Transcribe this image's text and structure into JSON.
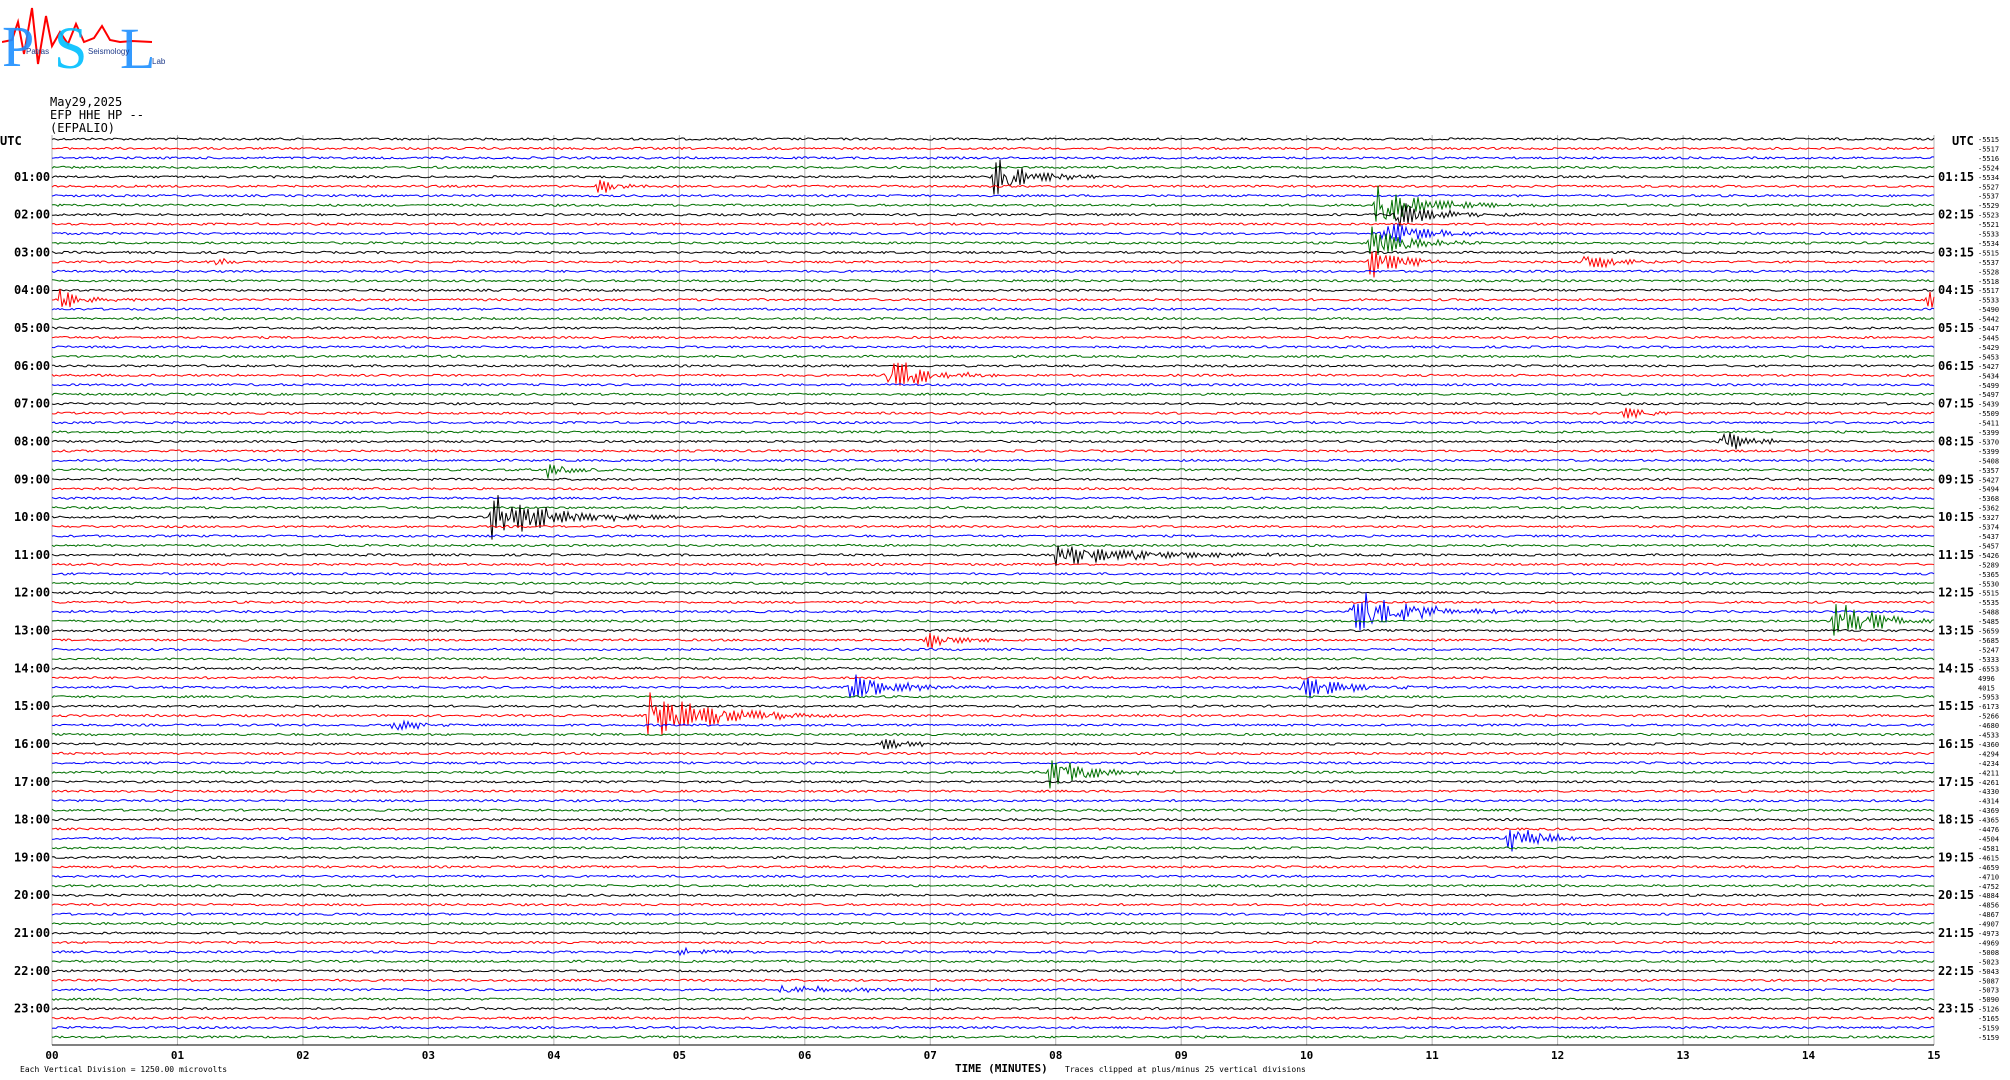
{
  "header": {
    "date": "May29,2025",
    "channel": "EFP HHE HP --",
    "station": "(EFPALIO)"
  },
  "logo": {
    "letters": [
      "P",
      "S",
      "L"
    ],
    "small_words": [
      "Patras",
      "Seismology",
      "Lab"
    ]
  },
  "footer": {
    "left_note": "Each Vertical Division = 1250.00 microvolts",
    "x_axis_title": "TIME (MINUTES)",
    "clip_note": "Traces clipped at plus/minus 25 vertical divisions"
  },
  "colors": {
    "trace_cycle": [
      "#000000",
      "#ff0000",
      "#0000ff",
      "#007000"
    ],
    "logo_p": "#1e90ff",
    "logo_s": "#00bfff",
    "logo_l": "#1e90ff",
    "logo_wave": "#ff0000"
  },
  "chart_data": {
    "type": "line",
    "title": "",
    "xlabel": "TIME (MINUTES)",
    "x_ticks": [
      "00",
      "01",
      "02",
      "03",
      "04",
      "05",
      "06",
      "07",
      "08",
      "09",
      "10",
      "11",
      "12",
      "13",
      "14",
      "15"
    ],
    "xlim": [
      0,
      15
    ],
    "grid": true,
    "rows": 96,
    "row_minutes": 15,
    "left_label_header": "UTC",
    "right_label_header": "UTC",
    "left_hour_labels": [
      "01:00",
      "02:00",
      "03:00",
      "04:00",
      "05:00",
      "06:00",
      "07:00",
      "08:00",
      "09:00",
      "10:00",
      "11:00",
      "12:00",
      "13:00",
      "14:00",
      "15:00",
      "16:00",
      "17:00",
      "18:00",
      "19:00",
      "20:00",
      "21:00",
      "22:00",
      "23:00"
    ],
    "right_hour_labels": [
      "01:15",
      "02:15",
      "03:15",
      "04:15",
      "05:15",
      "06:15",
      "07:15",
      "08:15",
      "09:15",
      "10:15",
      "11:15",
      "12:15",
      "13:15",
      "14:15",
      "15:15",
      "16:15",
      "17:15",
      "18:15",
      "19:15",
      "20:15",
      "21:15",
      "22:15",
      "23:15"
    ],
    "row_offsets": [
      "-5515",
      "-5517",
      "-5516",
      "-5524",
      "-5534",
      "-5527",
      "-5537",
      "-5529",
      "-5523",
      "-5521",
      "-5533",
      "-5534",
      "-5515",
      "-5537",
      "-5528",
      "-5518",
      "-5517",
      "-5533",
      "-5490",
      "-5442",
      "-5447",
      "-5445",
      "-5429",
      "-5453",
      "-5427",
      "-5434",
      "-5499",
      "-5497",
      "-5439",
      "-5509",
      "-5411",
      "-5399",
      "-5370",
      "-5399",
      "-5408",
      "-5357",
      "-5427",
      "-5494",
      "-5368",
      "-5362",
      "-5327",
      "-5374",
      "-5437",
      "-5457",
      "-5426",
      "-5289",
      "-5365",
      "-5530",
      "-5515",
      "-5535",
      "-5488",
      "-5485",
      "-5659",
      "-5685",
      "-5247",
      "-5333",
      "-6553",
      "4996",
      "4015",
      "-5953",
      "-6173",
      "-5266",
      "-4680",
      "-4533",
      "-4360",
      "-4294",
      "-4234",
      "-4211",
      "-4261",
      "-4330",
      "-4314",
      "-4369",
      "-4365",
      "-4476",
      "-4504",
      "-4581",
      "-4615",
      "-4659",
      "-4710",
      "-4752",
      "-4884",
      "-4856",
      "-4867",
      "-4907",
      "-4973",
      "-4969",
      "-5008",
      "-5023",
      "-5043",
      "-5087",
      "-5073",
      "-5090",
      "-5126",
      "-5165",
      "-5159",
      "-5159"
    ],
    "events": [
      {
        "row": 4,
        "minute": 7.5,
        "amp": 26,
        "dur": 0.25,
        "freq": 3.0
      },
      {
        "row": 5,
        "minute": 4.35,
        "amp": 9,
        "dur": 0.15,
        "freq": 3.5
      },
      {
        "row": 7,
        "minute": 10.55,
        "amp": 24,
        "dur": 0.35,
        "freq": 3.0
      },
      {
        "row": 8,
        "minute": 10.7,
        "amp": 16,
        "dur": 0.3,
        "freq": 3.0
      },
      {
        "row": 10,
        "minute": 10.6,
        "amp": 18,
        "dur": 0.3,
        "freq": 3.0
      },
      {
        "row": 11,
        "minute": 10.5,
        "amp": 20,
        "dur": 0.3,
        "freq": 3.0
      },
      {
        "row": 13,
        "minute": 1.3,
        "amp": 7,
        "dur": 0.1,
        "freq": 4.0
      },
      {
        "row": 13,
        "minute": 10.5,
        "amp": 18,
        "dur": 0.25,
        "freq": 3.0
      },
      {
        "row": 13,
        "minute": 12.2,
        "amp": 14,
        "dur": 0.2,
        "freq": 3.5
      },
      {
        "row": 17,
        "minute": 0.05,
        "amp": 12,
        "dur": 0.2,
        "freq": 3.5
      },
      {
        "row": 17,
        "minute": 14.95,
        "amp": 12,
        "dur": 0.15,
        "freq": 3.5
      },
      {
        "row": 25,
        "minute": 6.65,
        "amp": 22,
        "dur": 0.3,
        "freq": 3.0
      },
      {
        "row": 29,
        "minute": 12.5,
        "amp": 8,
        "dur": 0.2,
        "freq": 3.5
      },
      {
        "row": 32,
        "minute": 13.3,
        "amp": 14,
        "dur": 0.2,
        "freq": 3.5
      },
      {
        "row": 35,
        "minute": 3.95,
        "amp": 9,
        "dur": 0.15,
        "freq": 3.5
      },
      {
        "row": 40,
        "minute": 3.5,
        "amp": 26,
        "dur": 0.5,
        "freq": 3.0
      },
      {
        "row": 44,
        "minute": 8.0,
        "amp": 12,
        "dur": 0.7,
        "freq": 3.0
      },
      {
        "row": 50,
        "minute": 10.35,
        "amp": 28,
        "dur": 0.4,
        "freq": 3.0
      },
      {
        "row": 51,
        "minute": 14.2,
        "amp": 26,
        "dur": 0.3,
        "freq": 3.0
      },
      {
        "row": 53,
        "minute": 6.95,
        "amp": 14,
        "dur": 0.2,
        "freq": 3.5
      },
      {
        "row": 58,
        "minute": 6.35,
        "amp": 18,
        "dur": 0.3,
        "freq": 3.0
      },
      {
        "row": 58,
        "minute": 9.95,
        "amp": 16,
        "dur": 0.3,
        "freq": 3.0
      },
      {
        "row": 61,
        "minute": 4.75,
        "amp": 28,
        "dur": 0.5,
        "freq": 3.0
      },
      {
        "row": 62,
        "minute": 2.7,
        "amp": 9,
        "dur": 0.2,
        "freq": 3.5
      },
      {
        "row": 64,
        "minute": 6.6,
        "amp": 9,
        "dur": 0.2,
        "freq": 3.5
      },
      {
        "row": 67,
        "minute": 7.95,
        "amp": 18,
        "dur": 0.3,
        "freq": 3.0
      },
      {
        "row": 74,
        "minute": 11.6,
        "amp": 16,
        "dur": 0.25,
        "freq": 3.0
      },
      {
        "row": 86,
        "minute": 5.0,
        "amp": 4,
        "dur": 0.4,
        "freq": 3.0
      },
      {
        "row": 90,
        "minute": 5.8,
        "amp": 4,
        "dur": 0.7,
        "freq": 3.0
      }
    ]
  }
}
